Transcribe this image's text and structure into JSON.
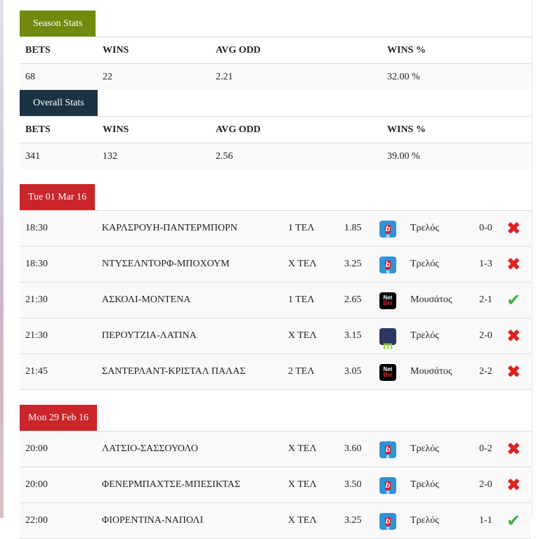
{
  "season": {
    "title": "Season Stats",
    "headers": [
      "BETS",
      "WINS",
      "AVG ODD",
      "WINS %"
    ],
    "values": [
      "68",
      "22",
      "2.21",
      "32.00 %"
    ]
  },
  "overall": {
    "title": "Overall Stats",
    "headers": [
      "BETS",
      "WINS",
      "AVG ODD",
      "WINS %"
    ],
    "values": [
      "341",
      "132",
      "2.56",
      "39.00 %"
    ]
  },
  "days": [
    {
      "date": "Tue 01 Mar 16",
      "matches": [
        {
          "time": "18:30",
          "match": "ΚΑΡΛΣΡΟΥΗ-ΠΑΝΤΕΡΜΠΟΡΝ",
          "pick": "1 ΤΕΛ",
          "odd": "1.85",
          "bookmaker": "sb",
          "tipster": "Τρελός",
          "score": "0-0",
          "result": "lost"
        },
        {
          "time": "18:30",
          "match": "ΝΤΥΣΕΛΝΤΟΡΦ-ΜΠΟΧΟΥΜ",
          "pick": "Χ ΤΕΛ",
          "odd": "3.25",
          "bookmaker": "sb",
          "tipster": "Τρελός",
          "score": "1-3",
          "result": "lost"
        },
        {
          "time": "21:30",
          "match": "ΑΣΚΟΛΙ-ΜΟΝΤΕΝΑ",
          "pick": "1 ΤΕΛ",
          "odd": "2.65",
          "bookmaker": "netbet",
          "tipster": "Μουσάτος",
          "score": "2-1",
          "result": "won"
        },
        {
          "time": "21:30",
          "match": "ΠΕΡΟΥΤΖΙΑ-ΛΑΤΙΝΑ",
          "pick": "Χ ΤΕΛ",
          "odd": "3.15",
          "bookmaker": "m",
          "tipster": "Τρελός",
          "score": "2-0",
          "result": "lost"
        },
        {
          "time": "21:45",
          "match": "ΣΑΝΤΕΡΛΑΝΤ-ΚΡΙΣΤΑΛ ΠΑΛΑΣ",
          "pick": "2 ΤΕΛ",
          "odd": "3.05",
          "bookmaker": "netbet",
          "tipster": "Μουσάτος",
          "score": "2-2",
          "result": "lost"
        }
      ]
    },
    {
      "date": "Mon 29 Feb 16",
      "matches": [
        {
          "time": "20:00",
          "match": "ΛΑΤΣΙΟ-ΣΑΣΣΟΥΟΛΟ",
          "pick": "Χ ΤΕΛ",
          "odd": "3.60",
          "bookmaker": "sb",
          "tipster": "Τρελός",
          "score": "0-2",
          "result": "lost"
        },
        {
          "time": "20:00",
          "match": "ΦΕΝΕΡΜΠΑΧΤΣΕ-ΜΠΕΣΙΚΤΑΣ",
          "pick": "Χ ΤΕΛ",
          "odd": "3.50",
          "bookmaker": "sb",
          "tipster": "Τρελός",
          "score": "2-0",
          "result": "lost"
        },
        {
          "time": "22:00",
          "match": "ΦΙΟΡΕΝΤΙΝΑ-ΝΑΠΟΛΙ",
          "pick": "Χ ΤΕΛ",
          "odd": "3.25",
          "bookmaker": "sb",
          "tipster": "Τρελός",
          "score": "1-1",
          "result": "won"
        }
      ]
    }
  ],
  "logos": {
    "sb_a": "s",
    "sb_b": "b",
    "net": "Net",
    "bet": "Bet",
    "m": "m"
  },
  "colors": {
    "season": "#6f8a0e",
    "overall": "#1b3342",
    "date": "#c9252a"
  }
}
